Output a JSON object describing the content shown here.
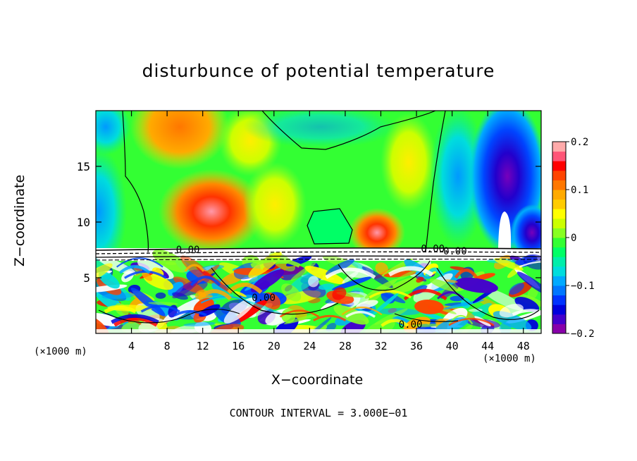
{
  "chart_data": {
    "type": "heatmap",
    "title": "disturbunce of potential temperature",
    "xlabel": "X−coordinate",
    "ylabel": "Z−coordinate",
    "x_unit_left": "(×1000 m)",
    "x_unit_right": "(×1000 m)",
    "xlim": [
      0,
      50
    ],
    "ylim": [
      0,
      20
    ],
    "xticks": [
      4,
      8,
      12,
      16,
      20,
      24,
      28,
      32,
      36,
      40,
      44,
      48
    ],
    "xtick_labels": [
      "4",
      "8",
      "12",
      "16",
      "20",
      "24",
      "28",
      "32",
      "36",
      "40",
      "44",
      "48"
    ],
    "yticks": [
      5,
      10,
      15
    ],
    "ytick_labels": [
      "5",
      "10",
      "15"
    ],
    "colorbar": {
      "min": -0.2,
      "max": 0.2,
      "ticks": [
        0.2,
        0.1,
        0,
        -0.1,
        -0.2
      ],
      "tick_labels": [
        "0.2",
        "0.1",
        "0",
        "−0.1",
        "−0.2"
      ],
      "colors": [
        "#8800aa",
        "#4400cc",
        "#0000dd",
        "#0033ff",
        "#0077ff",
        "#00aaff",
        "#00dddd",
        "#00eeaa",
        "#00ff66",
        "#33ff33",
        "#88ff22",
        "#ccff00",
        "#ffff00",
        "#ffcc00",
        "#ffaa00",
        "#ff7700",
        "#ff4400",
        "#ff0000",
        "#ff5577",
        "#ffaaaa"
      ]
    },
    "contour_labels": [
      {
        "x": 9.0,
        "y": 7.2,
        "text": "0.00"
      },
      {
        "x": 36.5,
        "y": 7.3,
        "text": "0.00"
      },
      {
        "x": 39.0,
        "y": 7.1,
        "text": "0.00"
      },
      {
        "x": 17.5,
        "y": 2.9,
        "text": "0.00"
      },
      {
        "x": 34.0,
        "y": 0.5,
        "text": "0.00"
      }
    ],
    "contour_interval_text": "CONTOUR INTERVAL = 3.000E−01",
    "grid": false
  }
}
